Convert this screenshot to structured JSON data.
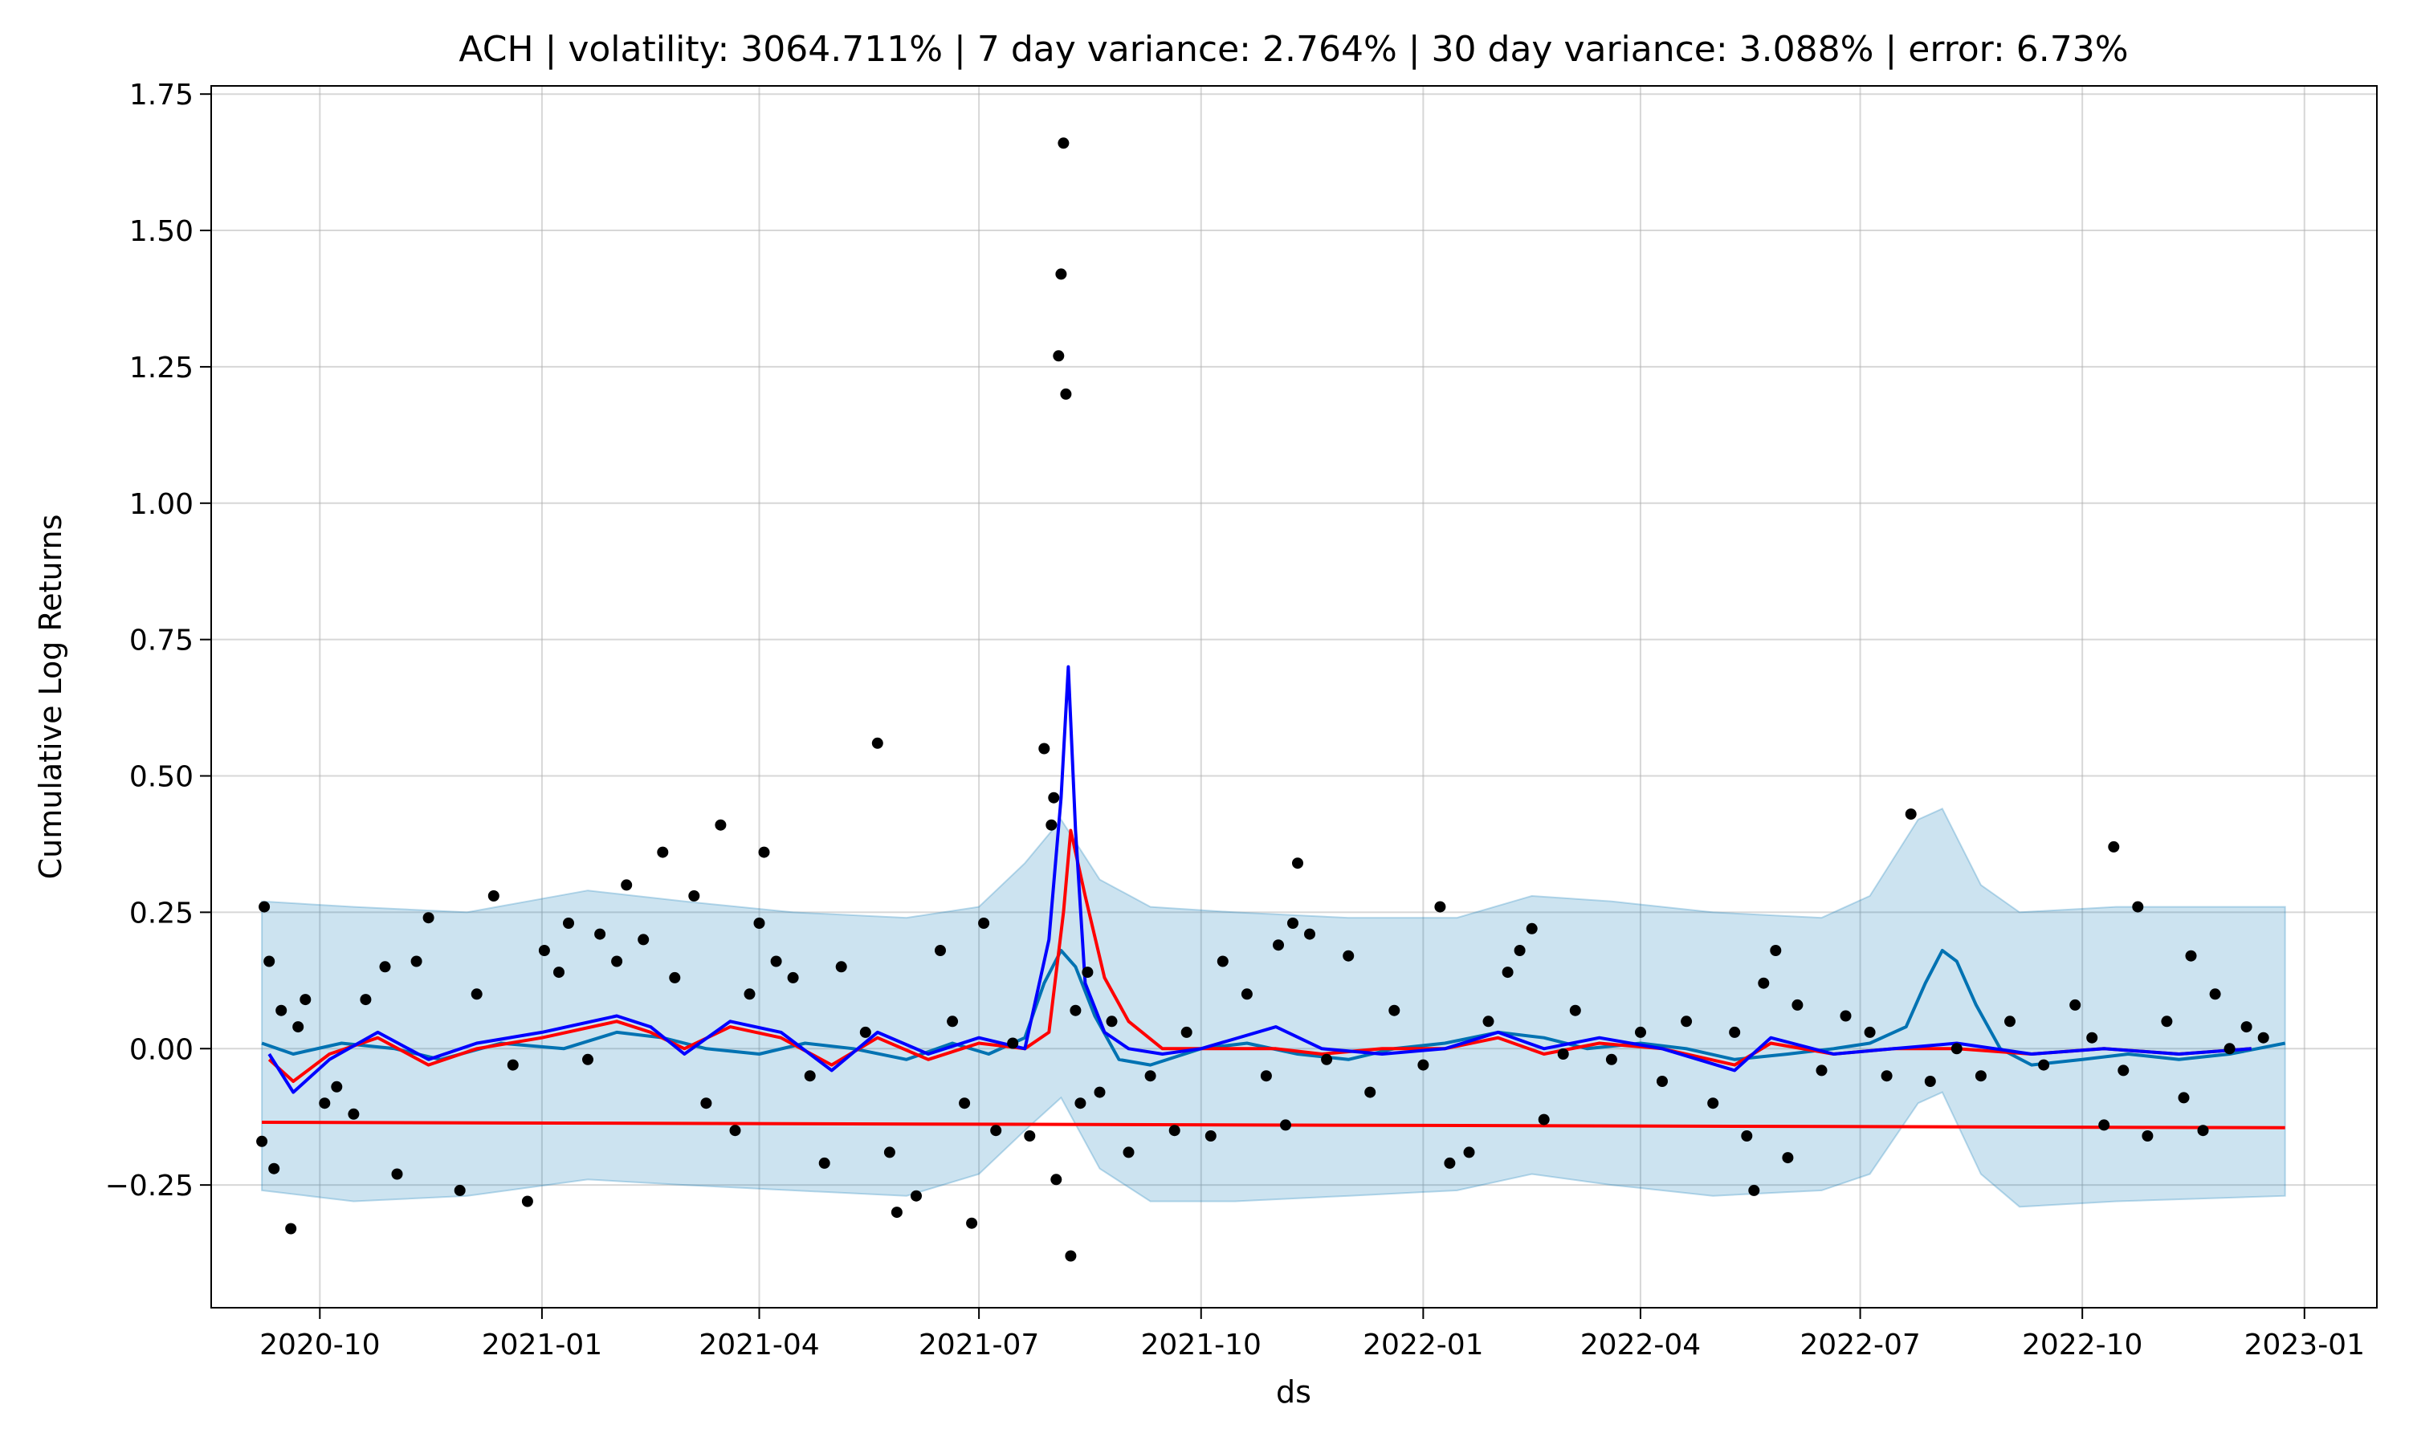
{
  "chart_data": {
    "type": "line",
    "title": "ACH | volatility: 3064.711% | 7 day variance: 2.764% | 30 day variance: 3.088% | error: 6.73%",
    "xlabel": "ds",
    "ylabel": "Cumulative Log Returns",
    "x_range": [
      "2020-08-17",
      "2023-01-31"
    ],
    "ylim": [
      -0.475,
      1.765
    ],
    "x_ticks": [
      "2020-10",
      "2021-01",
      "2021-04",
      "2021-07",
      "2021-10",
      "2022-01",
      "2022-04",
      "2022-07",
      "2022-10",
      "2023-01"
    ],
    "y_ticks": [
      -0.25,
      0.0,
      0.25,
      0.5,
      0.75,
      1.0,
      1.25,
      1.5,
      1.75
    ],
    "grid": true,
    "legend": "none",
    "colors": {
      "observed": "#000000",
      "forecast": "#0072B2",
      "band": "#0072B2",
      "trend": "#FF0000",
      "rolling_7": "#FF0000",
      "rolling_30": "#0000FF"
    },
    "series": [
      {
        "kind": "band",
        "x": [
          "2020-09-07",
          "2020-10-15",
          "2020-12-01",
          "2021-01-20",
          "2021-03-01",
          "2021-04-15",
          "2021-06-01",
          "2021-07-01",
          "2021-07-20",
          "2021-08-04",
          "2021-08-20",
          "2021-09-10",
          "2021-10-15",
          "2021-12-01",
          "2022-01-15",
          "2022-02-15",
          "2022-03-20",
          "2022-05-01",
          "2022-06-15",
          "2022-07-05",
          "2022-07-25",
          "2022-08-04",
          "2022-08-20",
          "2022-09-05",
          "2022-10-15",
          "2022-12-24"
        ],
        "upper": [
          0.27,
          0.26,
          0.25,
          0.29,
          0.27,
          0.25,
          0.24,
          0.26,
          0.34,
          0.42,
          0.31,
          0.26,
          0.25,
          0.24,
          0.24,
          0.28,
          0.27,
          0.25,
          0.24,
          0.28,
          0.42,
          0.44,
          0.3,
          0.25,
          0.26,
          0.26
        ],
        "lower": [
          -0.26,
          -0.28,
          -0.27,
          -0.24,
          -0.25,
          -0.26,
          -0.27,
          -0.23,
          -0.15,
          -0.09,
          -0.22,
          -0.28,
          -0.28,
          -0.27,
          -0.26,
          -0.23,
          -0.25,
          -0.27,
          -0.26,
          -0.23,
          -0.1,
          -0.08,
          -0.23,
          -0.29,
          -0.28,
          -0.27
        ]
      },
      {
        "kind": "line",
        "role": "trend",
        "x": [
          "2020-09-07",
          "2022-12-24"
        ],
        "y": [
          -0.135,
          -0.145
        ]
      },
      {
        "kind": "line",
        "role": "forecast",
        "x": [
          "2020-09-07",
          "2020-09-20",
          "2020-10-10",
          "2020-11-01",
          "2020-11-20",
          "2020-12-15",
          "2021-01-10",
          "2021-02-01",
          "2021-02-20",
          "2021-03-10",
          "2021-04-01",
          "2021-04-20",
          "2021-05-10",
          "2021-06-01",
          "2021-06-20",
          "2021-07-05",
          "2021-07-20",
          "2021-07-28",
          "2021-08-04",
          "2021-08-10",
          "2021-08-18",
          "2021-08-28",
          "2021-09-10",
          "2021-10-01",
          "2021-10-20",
          "2021-11-10",
          "2021-12-01",
          "2021-12-20",
          "2022-01-10",
          "2022-02-01",
          "2022-02-20",
          "2022-03-10",
          "2022-04-01",
          "2022-04-20",
          "2022-05-10",
          "2022-06-01",
          "2022-06-20",
          "2022-07-05",
          "2022-07-20",
          "2022-07-28",
          "2022-08-04",
          "2022-08-10",
          "2022-08-18",
          "2022-08-28",
          "2022-09-10",
          "2022-10-01",
          "2022-10-20",
          "2022-11-10",
          "2022-12-01",
          "2022-12-24"
        ],
        "y": [
          0.01,
          -0.01,
          0.01,
          0.0,
          -0.02,
          0.01,
          0.0,
          0.03,
          0.02,
          0.0,
          -0.01,
          0.01,
          0.0,
          -0.02,
          0.01,
          -0.01,
          0.02,
          0.12,
          0.18,
          0.15,
          0.06,
          -0.02,
          -0.03,
          0.0,
          0.01,
          -0.01,
          -0.02,
          0.0,
          0.01,
          0.03,
          0.02,
          0.0,
          0.01,
          0.0,
          -0.02,
          -0.01,
          0.0,
          0.01,
          0.04,
          0.12,
          0.18,
          0.16,
          0.08,
          0.0,
          -0.03,
          -0.02,
          -0.01,
          -0.02,
          -0.01,
          0.01
        ]
      },
      {
        "kind": "line",
        "role": "rolling_7",
        "x": [
          "2020-09-10",
          "2020-09-20",
          "2020-10-05",
          "2020-10-25",
          "2020-11-15",
          "2020-12-05",
          "2021-01-01",
          "2021-02-01",
          "2021-02-15",
          "2021-03-01",
          "2021-03-20",
          "2021-04-10",
          "2021-05-01",
          "2021-05-20",
          "2021-06-10",
          "2021-07-01",
          "2021-07-20",
          "2021-07-30",
          "2021-08-05",
          "2021-08-08",
          "2021-08-14",
          "2021-08-22",
          "2021-09-01",
          "2021-09-15",
          "2021-10-01",
          "2021-11-01",
          "2021-11-20",
          "2021-12-15",
          "2022-01-10",
          "2022-02-01",
          "2022-02-20",
          "2022-03-15",
          "2022-04-10",
          "2022-05-10",
          "2022-05-25",
          "2022-06-20",
          "2022-07-15",
          "2022-08-10",
          "2022-09-10",
          "2022-10-10",
          "2022-11-10",
          "2022-12-10"
        ],
        "y": [
          -0.02,
          -0.06,
          -0.01,
          0.02,
          -0.03,
          0.0,
          0.02,
          0.05,
          0.03,
          0.0,
          0.04,
          0.02,
          -0.03,
          0.02,
          -0.02,
          0.01,
          0.0,
          0.03,
          0.25,
          0.4,
          0.28,
          0.13,
          0.05,
          0.0,
          0.0,
          0.0,
          -0.01,
          0.0,
          0.0,
          0.02,
          -0.01,
          0.01,
          0.0,
          -0.03,
          0.01,
          -0.01,
          0.0,
          0.0,
          -0.01,
          0.0,
          -0.01,
          0.0
        ]
      },
      {
        "kind": "line",
        "role": "rolling_30",
        "x": [
          "2020-09-10",
          "2020-09-20",
          "2020-10-05",
          "2020-10-25",
          "2020-11-15",
          "2020-12-05",
          "2021-01-01",
          "2021-02-01",
          "2021-02-15",
          "2021-03-01",
          "2021-03-20",
          "2021-04-10",
          "2021-05-01",
          "2021-05-20",
          "2021-06-10",
          "2021-07-01",
          "2021-07-20",
          "2021-07-30",
          "2021-08-04",
          "2021-08-07",
          "2021-08-10",
          "2021-08-14",
          "2021-08-22",
          "2021-09-01",
          "2021-09-15",
          "2021-10-01",
          "2021-11-01",
          "2021-11-20",
          "2021-12-15",
          "2022-01-10",
          "2022-02-01",
          "2022-02-20",
          "2022-03-15",
          "2022-04-10",
          "2022-05-10",
          "2022-05-25",
          "2022-06-20",
          "2022-07-15",
          "2022-08-10",
          "2022-09-10",
          "2022-10-10",
          "2022-11-10",
          "2022-12-10"
        ],
        "y": [
          -0.01,
          -0.08,
          -0.02,
          0.03,
          -0.02,
          0.01,
          0.03,
          0.06,
          0.04,
          -0.01,
          0.05,
          0.03,
          -0.04,
          0.03,
          -0.01,
          0.02,
          0.0,
          0.2,
          0.46,
          0.7,
          0.4,
          0.12,
          0.03,
          0.0,
          -0.01,
          0.0,
          0.04,
          0.0,
          -0.01,
          0.0,
          0.03,
          0.0,
          0.02,
          0.0,
          -0.04,
          0.02,
          -0.01,
          0.0,
          0.01,
          -0.01,
          0.0,
          -0.01,
          0.0
        ]
      },
      {
        "kind": "scatter",
        "role": "observed",
        "points": [
          [
            "2020-09-07",
            -0.17
          ],
          [
            "2020-09-08",
            0.26
          ],
          [
            "2020-09-10",
            0.16
          ],
          [
            "2020-09-12",
            -0.22
          ],
          [
            "2020-09-15",
            0.07
          ],
          [
            "2020-09-19",
            -0.33
          ],
          [
            "2020-09-22",
            0.04
          ],
          [
            "2020-09-25",
            0.09
          ],
          [
            "2020-10-03",
            -0.1
          ],
          [
            "2020-10-08",
            -0.07
          ],
          [
            "2020-10-15",
            -0.12
          ],
          [
            "2020-10-20",
            0.09
          ],
          [
            "2020-10-28",
            0.15
          ],
          [
            "2020-11-02",
            -0.23
          ],
          [
            "2020-11-10",
            0.16
          ],
          [
            "2020-11-15",
            0.24
          ],
          [
            "2020-11-28",
            -0.26
          ],
          [
            "2020-12-05",
            0.1
          ],
          [
            "2020-12-12",
            0.28
          ],
          [
            "2020-12-20",
            -0.03
          ],
          [
            "2020-12-26",
            -0.28
          ],
          [
            "2021-01-02",
            0.18
          ],
          [
            "2021-01-08",
            0.14
          ],
          [
            "2021-01-12",
            0.23
          ],
          [
            "2021-01-20",
            -0.02
          ],
          [
            "2021-01-25",
            0.21
          ],
          [
            "2021-02-01",
            0.16
          ],
          [
            "2021-02-05",
            0.3
          ],
          [
            "2021-02-12",
            0.2
          ],
          [
            "2021-02-20",
            0.36
          ],
          [
            "2021-02-25",
            0.13
          ],
          [
            "2021-03-05",
            0.28
          ],
          [
            "2021-03-10",
            -0.1
          ],
          [
            "2021-03-16",
            0.41
          ],
          [
            "2021-03-22",
            -0.15
          ],
          [
            "2021-03-28",
            0.1
          ],
          [
            "2021-04-01",
            0.23
          ],
          [
            "2021-04-03",
            0.36
          ],
          [
            "2021-04-08",
            0.16
          ],
          [
            "2021-04-15",
            0.13
          ],
          [
            "2021-04-22",
            -0.05
          ],
          [
            "2021-04-28",
            -0.21
          ],
          [
            "2021-05-05",
            0.15
          ],
          [
            "2021-05-15",
            0.03
          ],
          [
            "2021-05-20",
            0.56
          ],
          [
            "2021-05-25",
            -0.19
          ],
          [
            "2021-05-28",
            -0.3
          ],
          [
            "2021-06-05",
            -0.27
          ],
          [
            "2021-06-15",
            0.18
          ],
          [
            "2021-06-20",
            0.05
          ],
          [
            "2021-06-25",
            -0.1
          ],
          [
            "2021-06-28",
            -0.32
          ],
          [
            "2021-07-03",
            0.23
          ],
          [
            "2021-07-08",
            -0.15
          ],
          [
            "2021-07-15",
            0.01
          ],
          [
            "2021-07-22",
            -0.16
          ],
          [
            "2021-07-28",
            0.55
          ],
          [
            "2021-07-31",
            0.41
          ],
          [
            "2021-08-01",
            0.46
          ],
          [
            "2021-08-02",
            -0.24
          ],
          [
            "2021-08-03",
            1.27
          ],
          [
            "2021-08-04",
            1.42
          ],
          [
            "2021-08-05",
            1.66
          ],
          [
            "2021-08-06",
            1.2
          ],
          [
            "2021-08-08",
            -0.38
          ],
          [
            "2021-08-10",
            0.07
          ],
          [
            "2021-08-12",
            -0.1
          ],
          [
            "2021-08-15",
            0.14
          ],
          [
            "2021-08-20",
            -0.08
          ],
          [
            "2021-08-25",
            0.05
          ],
          [
            "2021-09-01",
            -0.19
          ],
          [
            "2021-09-10",
            -0.05
          ],
          [
            "2021-09-20",
            -0.15
          ],
          [
            "2021-09-25",
            0.03
          ],
          [
            "2021-10-05",
            -0.16
          ],
          [
            "2021-10-10",
            0.16
          ],
          [
            "2021-10-20",
            0.1
          ],
          [
            "2021-10-28",
            -0.05
          ],
          [
            "2021-11-02",
            0.19
          ],
          [
            "2021-11-05",
            -0.14
          ],
          [
            "2021-11-08",
            0.23
          ],
          [
            "2021-11-10",
            0.34
          ],
          [
            "2021-11-15",
            0.21
          ],
          [
            "2021-11-22",
            -0.02
          ],
          [
            "2021-12-01",
            0.17
          ],
          [
            "2021-12-10",
            -0.08
          ],
          [
            "2021-12-20",
            0.07
          ],
          [
            "2022-01-01",
            -0.03
          ],
          [
            "2022-01-08",
            0.26
          ],
          [
            "2022-01-12",
            -0.21
          ],
          [
            "2022-01-20",
            -0.19
          ],
          [
            "2022-01-28",
            0.05
          ],
          [
            "2022-02-05",
            0.14
          ],
          [
            "2022-02-10",
            0.18
          ],
          [
            "2022-02-15",
            0.22
          ],
          [
            "2022-02-20",
            -0.13
          ],
          [
            "2022-02-28",
            -0.01
          ],
          [
            "2022-03-05",
            0.07
          ],
          [
            "2022-03-20",
            -0.02
          ],
          [
            "2022-04-01",
            0.03
          ],
          [
            "2022-04-10",
            -0.06
          ],
          [
            "2022-04-20",
            0.05
          ],
          [
            "2022-05-01",
            -0.1
          ],
          [
            "2022-05-10",
            0.03
          ],
          [
            "2022-05-15",
            -0.16
          ],
          [
            "2022-05-18",
            -0.26
          ],
          [
            "2022-05-22",
            0.12
          ],
          [
            "2022-05-27",
            0.18
          ],
          [
            "2022-06-01",
            -0.2
          ],
          [
            "2022-06-05",
            0.08
          ],
          [
            "2022-06-15",
            -0.04
          ],
          [
            "2022-06-25",
            0.06
          ],
          [
            "2022-07-05",
            0.03
          ],
          [
            "2022-07-12",
            -0.05
          ],
          [
            "2022-07-22",
            0.43
          ],
          [
            "2022-07-30",
            -0.06
          ],
          [
            "2022-08-10",
            0.0
          ],
          [
            "2022-08-20",
            -0.05
          ],
          [
            "2022-09-01",
            0.05
          ],
          [
            "2022-09-15",
            -0.03
          ],
          [
            "2022-09-28",
            0.08
          ],
          [
            "2022-10-05",
            0.02
          ],
          [
            "2022-10-10",
            -0.14
          ],
          [
            "2022-10-14",
            0.37
          ],
          [
            "2022-10-18",
            -0.04
          ],
          [
            "2022-10-24",
            0.26
          ],
          [
            "2022-10-28",
            -0.16
          ],
          [
            "2022-11-05",
            0.05
          ],
          [
            "2022-11-12",
            -0.09
          ],
          [
            "2022-11-15",
            0.17
          ],
          [
            "2022-11-20",
            -0.15
          ],
          [
            "2022-11-25",
            0.1
          ],
          [
            "2022-12-01",
            0.0
          ],
          [
            "2022-12-08",
            0.04
          ],
          [
            "2022-12-15",
            0.02
          ]
        ]
      }
    ]
  }
}
